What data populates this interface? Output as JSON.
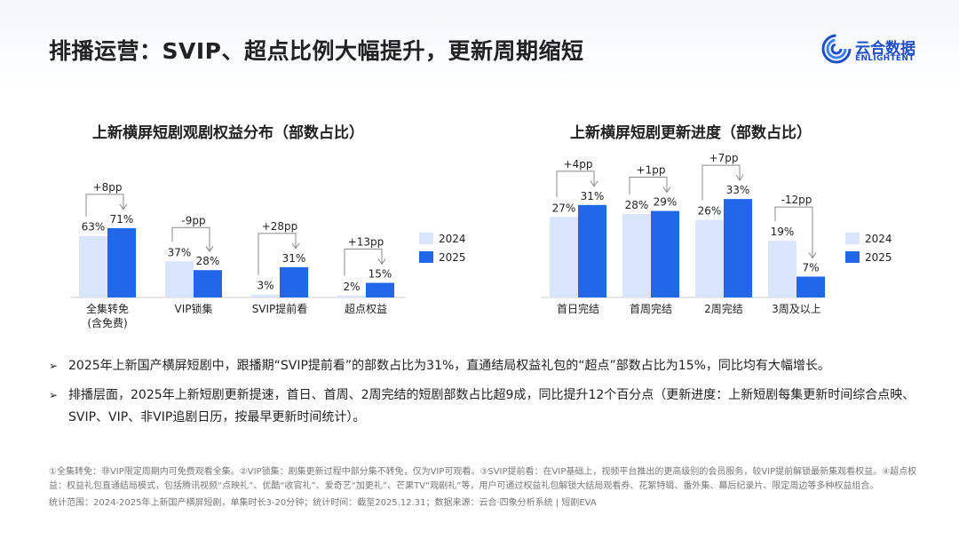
{
  "header": {
    "title": "排播运营：SVIP、超点比例大幅提升，更新周期缩短",
    "logo_cn": "云合数据",
    "logo_en": "ENLIGHTENT",
    "logo_icon": "spiral-logo-icon"
  },
  "colors": {
    "y2024": "#d9e5fa",
    "y2025": "#2167e8",
    "text": "#222222",
    "muted": "#777777"
  },
  "chart_data": [
    {
      "type": "bar",
      "title": "上新横屏短剧观剧权益分布（部数占比）",
      "categories": [
        "全集转免\n(含免费)",
        "VIP锁集",
        "SVIP提前看",
        "超点权益"
      ],
      "series": [
        {
          "name": "2024",
          "values": [
            63,
            37,
            3,
            2
          ]
        },
        {
          "name": "2025",
          "values": [
            71,
            28,
            31,
            15
          ]
        }
      ],
      "data_labels": {
        "2024": [
          "63%",
          "37%",
          "3%",
          "2%"
        ],
        "2025": [
          "71%",
          "28%",
          "31%",
          "15%"
        ]
      },
      "changes": [
        "+8pp",
        "-9pp",
        "+28pp",
        "+13pp"
      ],
      "ylim": [
        0,
        100
      ],
      "grid": false,
      "legend": "right"
    },
    {
      "type": "bar",
      "title": "上新横屏短剧更新进度（部数占比）",
      "categories": [
        "首日完结",
        "首周完结",
        "2周完结",
        "3周及以上"
      ],
      "series": [
        {
          "name": "2024",
          "values": [
            27,
            28,
            26,
            19
          ]
        },
        {
          "name": "2025",
          "values": [
            31,
            29,
            33,
            7
          ]
        }
      ],
      "data_labels": {
        "2024": [
          "27%",
          "28%",
          "26%",
          "19%"
        ],
        "2025": [
          "31%",
          "29%",
          "33%",
          "7%"
        ]
      },
      "changes": [
        "+4pp",
        "+1pp",
        "+7pp",
        "-12pp"
      ],
      "ylim": [
        0,
        50
      ],
      "grid": false,
      "legend": "right"
    }
  ],
  "bullets": [
    "2025年上新国产横屏短剧中，跟播期“SVIP提前看”的部数占比为31%，直通结局权益礼包的“超点”部数占比为15%，同比均有大幅增长。",
    "排播层面，2025年上新短剧更新提速，首日、首周、2周完结的短剧部数占比超9成，同比提升12个百分点（更新进度：上新短剧每集更新时间综合点映、SVIP、VIP、非VIP追剧日历，按最早更新时间统计）。"
  ],
  "footnote": "①全集转免：非VIP限定周期内可免费观看全集。②VIP锁集：剧集更新过程中部分集不转免，仅为VIP可观看。③SVIP提前看：在VIP基础上，视频平台推出的更高级别的会员服务，较VIP提前解锁最新集观看权益。④超点权益：权益礼包直通结局模式，包括腾讯视频“点映礼”、优酷“收官礼”、爱奇艺“加更礼”、芒果TV“观剧礼”等，用户可通过权益礼包解锁大结局观看券、花絮特辑、番外集、幕后纪录片、限定周边等多种权益组合。",
  "scope": "统计范围：2024-2025年上新国产横屏短剧，单集时长3-20分钟；统计时间：截至2025.12.31；数据来源：云合·四象分析系统 | 短剧EVA"
}
